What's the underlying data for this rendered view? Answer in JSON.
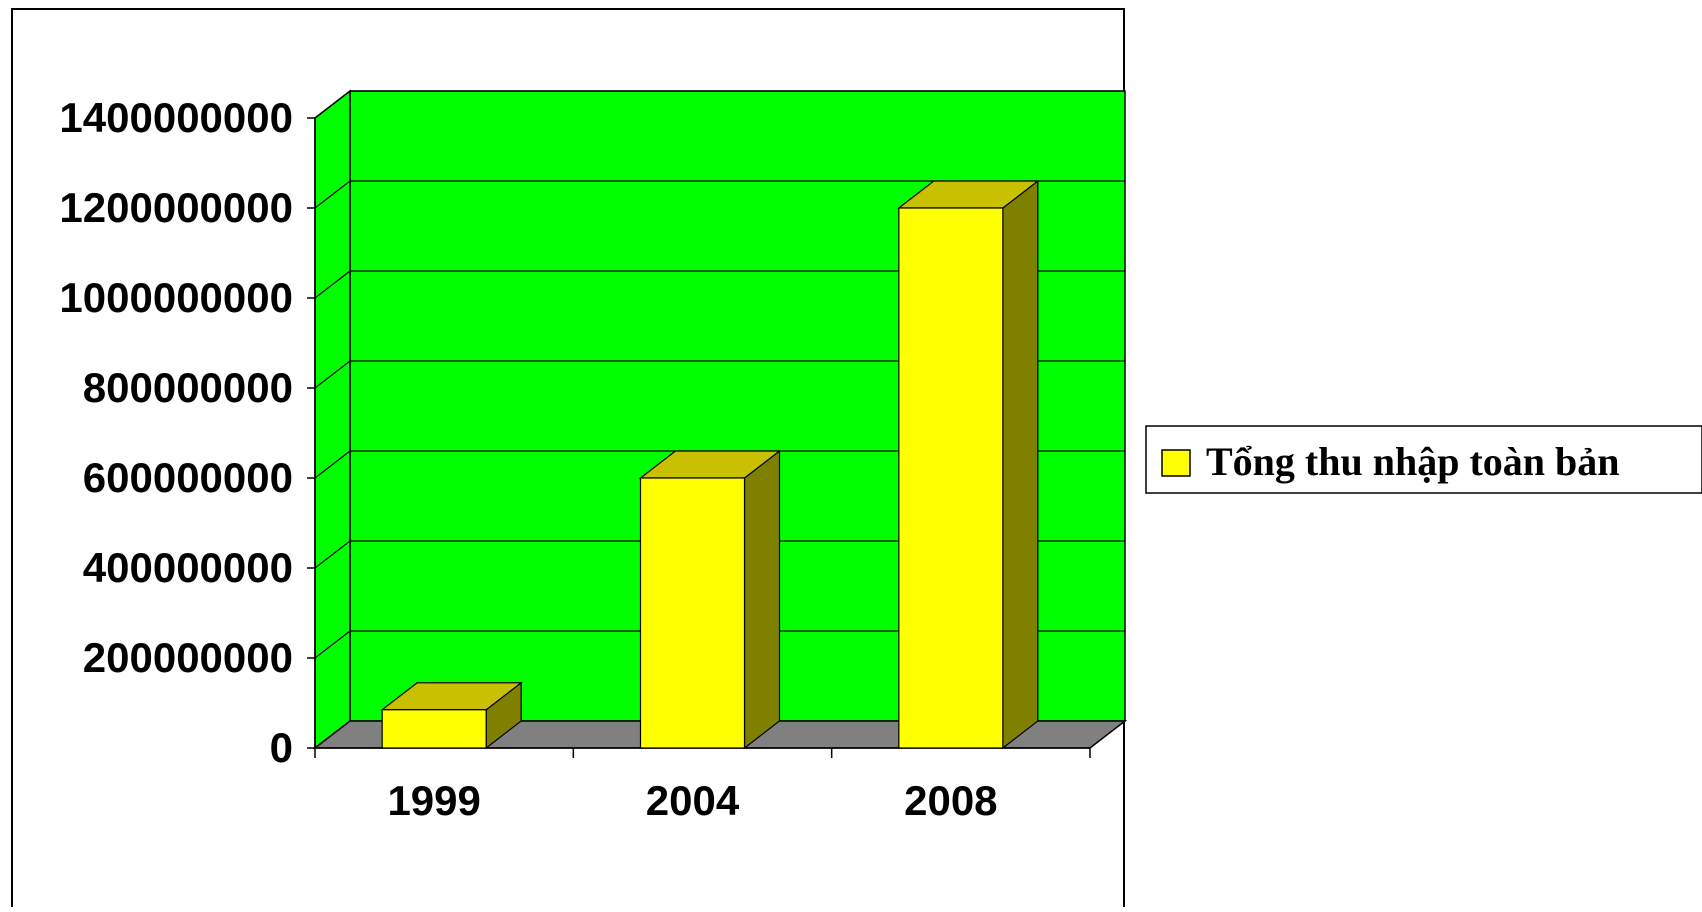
{
  "chart_data": {
    "type": "bar",
    "categories": [
      "1999",
      "2004",
      "2008"
    ],
    "series": [
      {
        "name": "Tổng thu nhập toàn bản",
        "values": [
          85000000,
          600000000,
          1200000000
        ]
      }
    ],
    "yticks": [
      "0",
      "200000000",
      "400000000",
      "600000000",
      "800000000",
      "1000000000",
      "1200000000",
      "1400000000"
    ],
    "ylim": [
      0,
      1400000000
    ],
    "grid": true,
    "legend_position": "right",
    "style": "3d",
    "colors": {
      "plot_wall": "#00ff00",
      "floor": "#808080",
      "bar_front": "#ffff00",
      "bar_top": "#c8c000",
      "bar_side": "#808000",
      "grid": "#000000"
    }
  }
}
